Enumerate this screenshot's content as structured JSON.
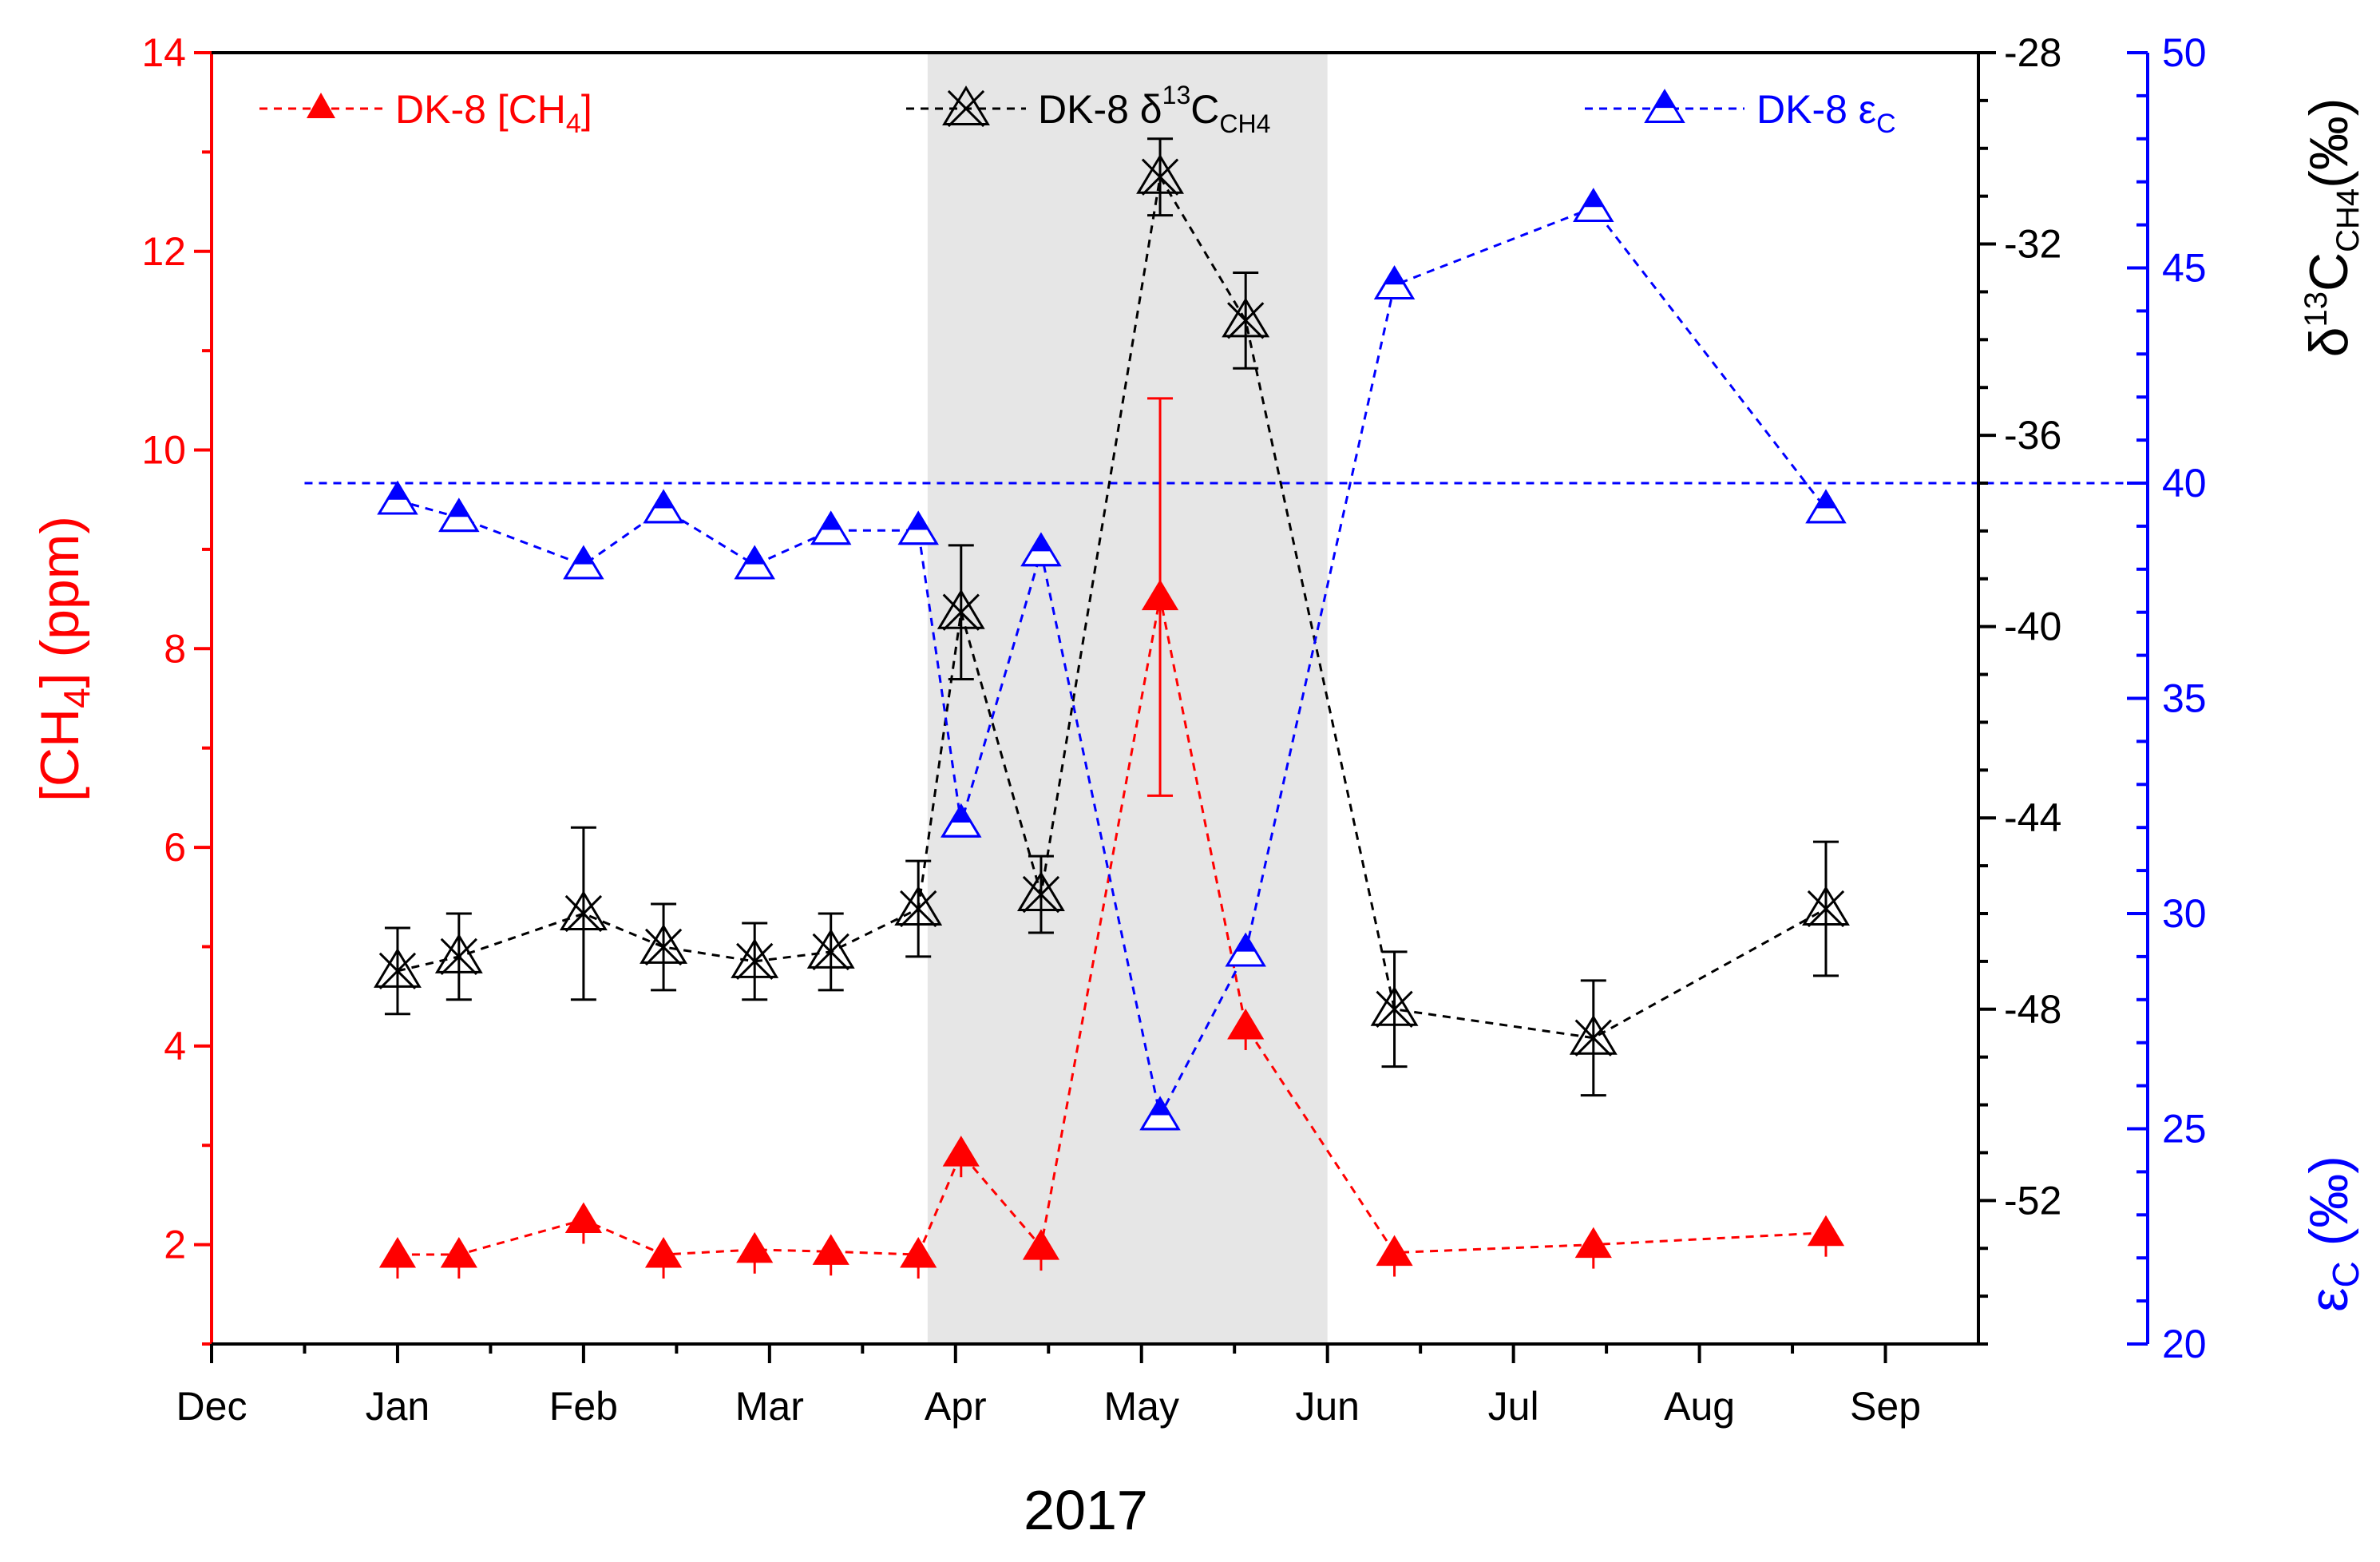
{
  "chart_data": {
    "type": "line",
    "x_unit": "months since Dec 2016",
    "xlim": [
      0,
      9.5
    ],
    "categories": [
      "Dec",
      "Jan",
      "Feb",
      "Mar",
      "Apr",
      "May",
      "Jun",
      "Jul",
      "Aug",
      "Sep"
    ],
    "xlabel": "2017",
    "shaded_region": {
      "from": 3.85,
      "to": 6.0
    },
    "axes": {
      "left": {
        "label_main": "[CH",
        "label_sub": "4",
        "label_end": "] (ppm)",
        "ylim": [
          1,
          14
        ],
        "ticks": [
          "2",
          "4",
          "6",
          "8",
          "10",
          "12",
          "14"
        ],
        "color": "#ff0000"
      },
      "right_inner": {
        "label_main": "δ",
        "label_sup": "13",
        "label_c": "C",
        "label_sub": "CH4",
        "label_end": "(‰)",
        "ylim": [
          -55,
          -28
        ],
        "ticks": [
          "-28",
          "-32",
          "-36",
          "-40",
          "-44",
          "-48",
          "-52"
        ],
        "color": "#000000"
      },
      "right_outer": {
        "label_main": "ε",
        "label_sub": "C",
        "label_end": " (‰)",
        "ylim": [
          20,
          50
        ],
        "ticks": [
          "20",
          "25",
          "30",
          "35",
          "40",
          "45",
          "50"
        ],
        "color": "#0000ff"
      }
    },
    "reference_line": {
      "axis": "right_outer",
      "value": 40,
      "x_from": 0.5
    },
    "series": [
      {
        "name": "DK-8 [CH4]",
        "legend_main": "DK-8 [CH",
        "legend_sub": "4",
        "legend_end": "]",
        "axis": "left",
        "color": "#ff0000",
        "x": [
          1.0,
          1.33,
          2.0,
          2.43,
          2.92,
          3.33,
          3.8,
          4.03,
          4.46,
          5.1,
          5.56,
          6.36,
          7.43,
          8.68
        ],
        "values": [
          1.9,
          1.9,
          2.25,
          1.9,
          1.95,
          1.93,
          1.9,
          2.92,
          1.98,
          8.52,
          4.2,
          1.92,
          2.0,
          2.12
        ],
        "errors": [
          0,
          0,
          0,
          0,
          0,
          0,
          0,
          0,
          0,
          2.0,
          0,
          0,
          0,
          0
        ]
      },
      {
        "name": "DK-8 δ13C CH4",
        "legend_main": "DK-8 δ",
        "legend_sup": "13",
        "legend_c": "C",
        "legend_sub": "CH4",
        "axis": "right_inner",
        "color": "#000000",
        "x": [
          1.0,
          1.33,
          2.0,
          2.43,
          2.92,
          3.33,
          3.8,
          4.03,
          4.46,
          5.1,
          5.56,
          6.36,
          7.43,
          8.68
        ],
        "values": [
          -47.2,
          -46.9,
          -46.0,
          -46.7,
          -47.0,
          -46.8,
          -45.9,
          -39.7,
          -45.6,
          -30.6,
          -33.6,
          -48.0,
          -48.6,
          -45.9
        ],
        "errors": [
          0.9,
          0.9,
          1.8,
          0.9,
          0.8,
          0.8,
          1.0,
          1.4,
          0.8,
          0.8,
          1.0,
          1.2,
          1.2,
          1.4
        ]
      },
      {
        "name": "DK-8 εC",
        "legend_main": "DK-8 ε",
        "legend_sub": "C",
        "axis": "right_outer",
        "color": "#0000ff",
        "x": [
          1.0,
          1.33,
          2.0,
          2.43,
          2.92,
          3.33,
          3.8,
          4.03,
          4.46,
          5.1,
          5.56,
          6.36,
          7.43,
          8.68
        ],
        "values": [
          39.6,
          39.2,
          38.1,
          39.4,
          38.1,
          38.9,
          38.9,
          32.1,
          38.4,
          25.3,
          29.1,
          44.6,
          46.4,
          39.4
        ]
      }
    ]
  }
}
